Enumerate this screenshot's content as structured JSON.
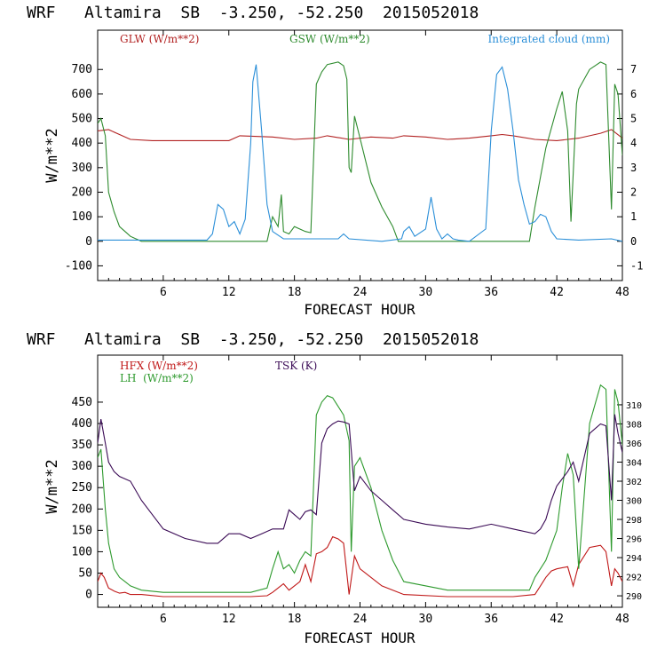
{
  "colors": {
    "glw": "#b22222",
    "gsw": "#2e8b2e",
    "cloud": "#2b8fd8",
    "hfx": "#c01818",
    "lh": "#2e9a2e",
    "tsk": "#3a0a55",
    "axis": "#000000"
  },
  "chart_data": [
    {
      "type": "line",
      "title": "WRF   Altamira  SB  -3.250, -52.250  2015052018",
      "xlabel": "FORECAST HOUR",
      "ylabel": "W/m**2",
      "xlim": [
        0,
        48
      ],
      "xticks": [
        "6",
        "12",
        "18",
        "24",
        "30",
        "36",
        "42",
        "48"
      ],
      "ylim": [
        -160,
        860
      ],
      "yticks": [
        "-100",
        "0",
        "100",
        "200",
        "300",
        "400",
        "500",
        "600",
        "700"
      ],
      "y2lim": [
        -1.6,
        8.6
      ],
      "y2ticks": [
        "-1",
        "0",
        "1",
        "2",
        "3",
        "4",
        "5",
        "6",
        "7"
      ],
      "grid": false,
      "series": [
        {
          "name": "GLW (W/m**2)",
          "axis": "left",
          "x": [
            0,
            1,
            3,
            5,
            8,
            12,
            13,
            16,
            18,
            20,
            21,
            23,
            25,
            27,
            28,
            30,
            32,
            34,
            36,
            37,
            38,
            40,
            42,
            44,
            46,
            47,
            48
          ],
          "y": [
            450,
            455,
            415,
            410,
            410,
            410,
            430,
            425,
            415,
            420,
            430,
            415,
            425,
            420,
            430,
            425,
            415,
            420,
            430,
            435,
            430,
            415,
            410,
            420,
            440,
            455,
            420
          ]
        },
        {
          "name": "GSW (W/m**2)",
          "axis": "left",
          "x": [
            0,
            0.3,
            0.7,
            1,
            1.5,
            2,
            2.5,
            3,
            4,
            15.5,
            16,
            16.5,
            16.8,
            17,
            17.5,
            18,
            19,
            19.5,
            20,
            20.5,
            21,
            22,
            22.5,
            22.8,
            23,
            23.2,
            23.5,
            24,
            25,
            26,
            27,
            27.5,
            39.5,
            40,
            41,
            42,
            42.5,
            43,
            43.3,
            43.8,
            44,
            45,
            46,
            46.5,
            47,
            47.3,
            47.6,
            48
          ],
          "y": [
            480,
            500,
            430,
            200,
            120,
            60,
            40,
            20,
            0,
            0,
            100,
            60,
            190,
            40,
            30,
            60,
            40,
            35,
            640,
            690,
            720,
            730,
            715,
            660,
            300,
            280,
            510,
            420,
            240,
            140,
            60,
            0,
            0,
            140,
            380,
            540,
            610,
            450,
            80,
            560,
            620,
            700,
            730,
            720,
            130,
            640,
            600,
            350
          ]
        },
        {
          "name": "Integrated cloud (mm)",
          "axis": "right",
          "x": [
            0,
            10,
            10.5,
            11,
            11.5,
            12,
            12.5,
            13,
            13.5,
            14,
            14.2,
            14.5,
            15,
            15.5,
            16,
            17,
            22,
            22.5,
            23,
            26,
            27.8,
            28,
            28.5,
            29,
            30,
            30.5,
            31,
            31.5,
            32,
            32.5,
            33,
            34,
            35.5,
            36,
            36.5,
            37,
            37.5,
            38,
            38.5,
            39,
            39.5,
            40,
            40.5,
            41,
            41.5,
            42,
            44,
            47,
            48
          ],
          "y": [
            0.05,
            0.05,
            0.3,
            1.5,
            1.3,
            0.6,
            0.8,
            0.3,
            0.9,
            4,
            6.5,
            7.2,
            4.5,
            1.5,
            0.4,
            0.1,
            0.1,
            0.3,
            0.1,
            0,
            0.1,
            0.4,
            0.6,
            0.2,
            0.5,
            1.8,
            0.5,
            0.1,
            0.3,
            0.1,
            0.05,
            0,
            0.5,
            4.5,
            6.8,
            7.1,
            6.2,
            4.5,
            2.5,
            1.5,
            0.7,
            0.8,
            1.1,
            1,
            0.4,
            0.1,
            0.05,
            0.1,
            0
          ]
        }
      ]
    },
    {
      "type": "line",
      "title": "WRF   Altamira  SB  -3.250, -52.250  2015052018",
      "xlabel": "FORECAST HOUR",
      "ylabel": "W/m**2",
      "xlim": [
        0,
        48
      ],
      "xticks": [
        "6",
        "12",
        "18",
        "24",
        "30",
        "36",
        "42",
        "48"
      ],
      "ylim": [
        -30,
        560
      ],
      "yticks": [
        "0",
        "50",
        "100",
        "150",
        "200",
        "250",
        "300",
        "350",
        "400",
        "450"
      ],
      "y2lim": [
        288.8,
        315.2
      ],
      "y2ticks": [
        "290",
        "292",
        "294",
        "296",
        "298",
        "300",
        "302",
        "304",
        "306",
        "308",
        "310"
      ],
      "grid": false,
      "series": [
        {
          "name": "HFX (W/m**2)",
          "axis": "left",
          "x": [
            0,
            0.3,
            0.6,
            1,
            1.5,
            2,
            2.5,
            3,
            4,
            6,
            10,
            14,
            15.5,
            16,
            16.5,
            17,
            17.5,
            18,
            18.5,
            19,
            19.5,
            20,
            20.5,
            21,
            21.5,
            22,
            22.5,
            23,
            23.5,
            24,
            25,
            26,
            28,
            32,
            36,
            38,
            40,
            40.5,
            41,
            41.5,
            42,
            43,
            43.5,
            44,
            45,
            46,
            46.5,
            47,
            47.3,
            47.6,
            48
          ],
          "y": [
            30,
            50,
            40,
            15,
            8,
            3,
            5,
            0,
            0,
            -5,
            -5,
            -5,
            -3,
            5,
            15,
            25,
            10,
            20,
            30,
            70,
            30,
            95,
            100,
            110,
            135,
            130,
            120,
            0,
            90,
            60,
            40,
            20,
            0,
            -5,
            -5,
            -5,
            0,
            20,
            40,
            55,
            60,
            65,
            20,
            70,
            110,
            115,
            100,
            20,
            60,
            50,
            30
          ]
        },
        {
          "name": "LH  (W/m**2)",
          "axis": "left",
          "x": [
            0,
            0.3,
            0.7,
            1,
            1.5,
            2,
            2.5,
            3,
            4,
            6,
            10,
            14,
            15.5,
            16,
            16.5,
            17,
            17.5,
            18,
            18.5,
            19,
            19.5,
            20,
            20.5,
            21,
            21.5,
            22,
            22.5,
            23,
            23.2,
            23.5,
            24,
            25,
            26,
            27,
            28,
            32,
            36,
            39.5,
            40,
            41,
            42,
            42.5,
            43,
            43.5,
            44,
            45,
            46,
            46.5,
            47,
            47.3,
            47.6,
            48
          ],
          "y": [
            320,
            340,
            200,
            120,
            60,
            40,
            30,
            20,
            10,
            5,
            5,
            5,
            15,
            60,
            100,
            60,
            70,
            50,
            80,
            100,
            90,
            420,
            450,
            465,
            460,
            440,
            420,
            360,
            100,
            300,
            320,
            250,
            150,
            80,
            30,
            10,
            10,
            10,
            40,
            80,
            150,
            250,
            330,
            280,
            60,
            400,
            490,
            480,
            100,
            480,
            450,
            350
          ]
        },
        {
          "name": "TSK (K)",
          "axis": "right",
          "x": [
            0,
            0.3,
            0.7,
            1,
            1.5,
            2,
            3,
            4,
            5,
            6,
            8,
            10,
            11,
            12,
            13,
            14,
            15,
            16,
            17,
            17.5,
            18,
            18.5,
            19,
            19.5,
            20,
            20.5,
            21,
            21.5,
            22,
            22.5,
            23,
            23.5,
            24,
            25,
            26,
            27,
            28,
            30,
            32,
            34,
            36,
            38,
            40,
            40.5,
            41,
            41.5,
            42,
            43,
            43.5,
            44,
            45,
            46,
            46.5,
            47,
            47.3,
            47.6,
            48
          ],
          "y": [
            306,
            308.5,
            306,
            304,
            303,
            302.5,
            302,
            300,
            298.5,
            297,
            296,
            295.5,
            295.5,
            296.5,
            296.5,
            296,
            296.5,
            297,
            297,
            299,
            298.5,
            298,
            298.8,
            299,
            298.5,
            306,
            307.5,
            308,
            308.3,
            308.2,
            308,
            301,
            302.5,
            301,
            300,
            299,
            298,
            297.5,
            297.2,
            297,
            297.5,
            297,
            296.5,
            297,
            298,
            300,
            301.5,
            303,
            304,
            302,
            307,
            308,
            307.8,
            300,
            309,
            307,
            305
          ]
        }
      ]
    }
  ]
}
